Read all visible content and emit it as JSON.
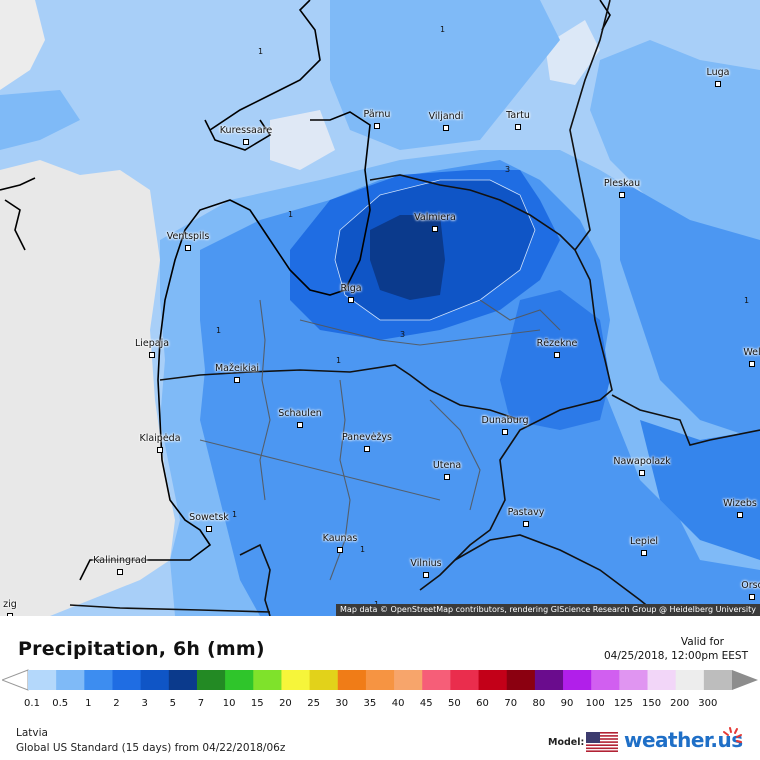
{
  "map": {
    "cities": [
      {
        "name": "Kuressaare"
      },
      {
        "name": "Pärnu"
      },
      {
        "name": "Viljandi"
      },
      {
        "name": "Tartu"
      },
      {
        "name": "Luga"
      },
      {
        "name": "Pleskau"
      },
      {
        "name": "Valmiera"
      },
      {
        "name": "Ventspils"
      },
      {
        "name": "Riga"
      },
      {
        "name": "Liepaja"
      },
      {
        "name": "Rēzekne"
      },
      {
        "name": "Mažeikiai"
      },
      {
        "name": "Schaulen"
      },
      {
        "name": "Panevėžys"
      },
      {
        "name": "Klaipėda"
      },
      {
        "name": "Dunaburg"
      },
      {
        "name": "Nawapolazk"
      },
      {
        "name": "Utena"
      },
      {
        "name": "Sowetsk"
      },
      {
        "name": "Pastavy"
      },
      {
        "name": "Kaunas"
      },
      {
        "name": "Lepiel"
      },
      {
        "name": "Vilnius"
      },
      {
        "name": "Kaliningrad"
      },
      {
        "name": "Wizebs"
      },
      {
        "name": "Orsc"
      },
      {
        "name": "Wel"
      },
      {
        "name": "zig"
      }
    ],
    "contour_labels": [
      "1",
      "1",
      "1",
      "1",
      "1",
      "1",
      "3",
      "3",
      "1",
      "1",
      "1"
    ],
    "attribution": "Map data © OpenStreetMap contributors, rendering GIScience Research Group @ Heidelberg University"
  },
  "legend": {
    "title": "Precipitation, 6h (mm)",
    "valid_label": "Valid for",
    "valid_date": "04/25/2018, 12:00pm EEST",
    "ticks": [
      "0.1",
      "0.5",
      "1",
      "2",
      "3",
      "5",
      "7",
      "10",
      "15",
      "20",
      "25",
      "30",
      "35",
      "40",
      "45",
      "50",
      "60",
      "70",
      "80",
      "90",
      "100",
      "125",
      "150",
      "200",
      "300"
    ],
    "colors": [
      "#b4d8fb",
      "#7fbaf7",
      "#3d8df0",
      "#1f6de3",
      "#0f55c6",
      "#0b3a8c",
      "#238a24",
      "#2fc52b",
      "#7fe22b",
      "#f6f53a",
      "#e2d21a",
      "#f07c17",
      "#f69442",
      "#f7a56b",
      "#f65e78",
      "#ea2d4d",
      "#c30018",
      "#8b0010",
      "#6a0c8d",
      "#b11fea",
      "#d15ff0",
      "#e095f1",
      "#f2d6f8",
      "#ededed",
      "#bdbdbd"
    ],
    "region": "Latvia",
    "model_line": "Global US Standard (15 days) from 04/22/2018/06z",
    "model_label": "Model:",
    "brand": "weather.us"
  }
}
